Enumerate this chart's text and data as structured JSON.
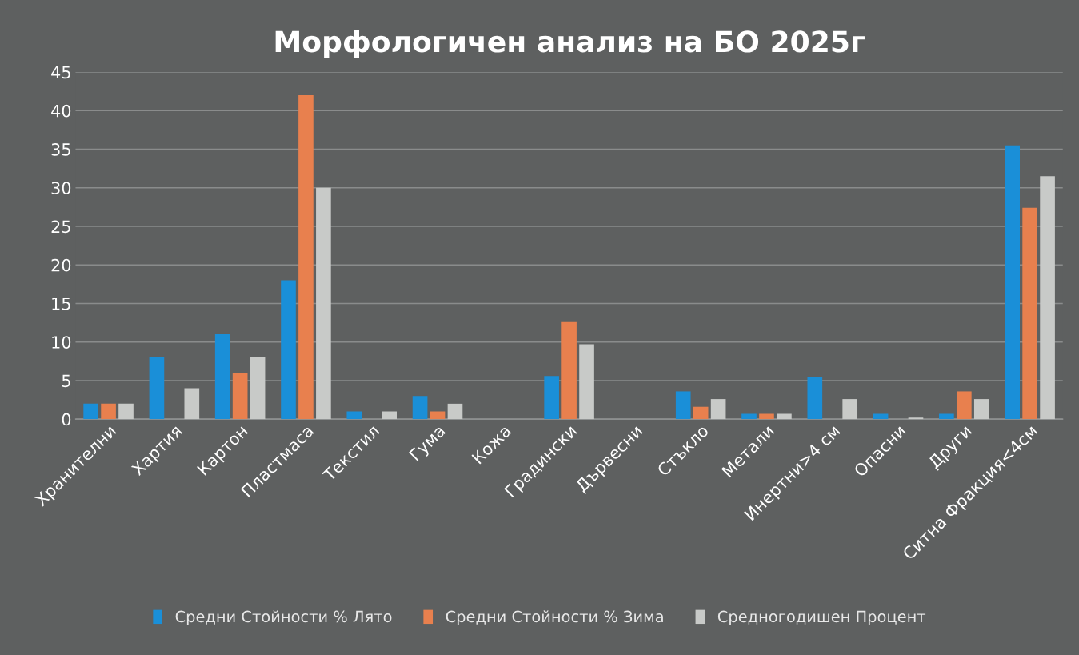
{
  "chart_data": {
    "type": "bar",
    "title": "Морфологичен анализ на БО 2025г",
    "categories": [
      "Хранителни",
      "Хартия",
      "Картон",
      "Пластмаса",
      "Текстил",
      "Гума",
      "Кожа",
      "Градински",
      "Дървесни",
      "Стъкло",
      "Метали",
      "Инертни>4 см",
      "Опасни",
      "Други",
      "Ситна Фракция<4см"
    ],
    "series": [
      {
        "name": "Средни Стойности % Лято",
        "color": "#1a8fd8",
        "values": [
          2,
          8,
          11,
          18,
          1,
          3,
          0,
          5.6,
          0,
          3.6,
          0.7,
          5.5,
          0.7,
          0.7,
          35.5
        ]
      },
      {
        "name": "Средни Стойности % Зима",
        "color": "#e8804e",
        "values": [
          2,
          0,
          6,
          42,
          0,
          1,
          0,
          12.7,
          0,
          1.6,
          0.7,
          0,
          0,
          3.6,
          27.4
        ]
      },
      {
        "name": "Средногодишен Процент",
        "color": "#c8cac8",
        "values": [
          2,
          4,
          8,
          30,
          1,
          2,
          0,
          9.7,
          0,
          2.6,
          0.7,
          2.6,
          0.2,
          2.6,
          31.5
        ]
      }
    ],
    "ylim": [
      0,
      45
    ],
    "yticks": [
      0,
      5,
      10,
      15,
      20,
      25,
      30,
      35,
      40,
      45
    ],
    "grid": "y",
    "legend": "bottom"
  }
}
